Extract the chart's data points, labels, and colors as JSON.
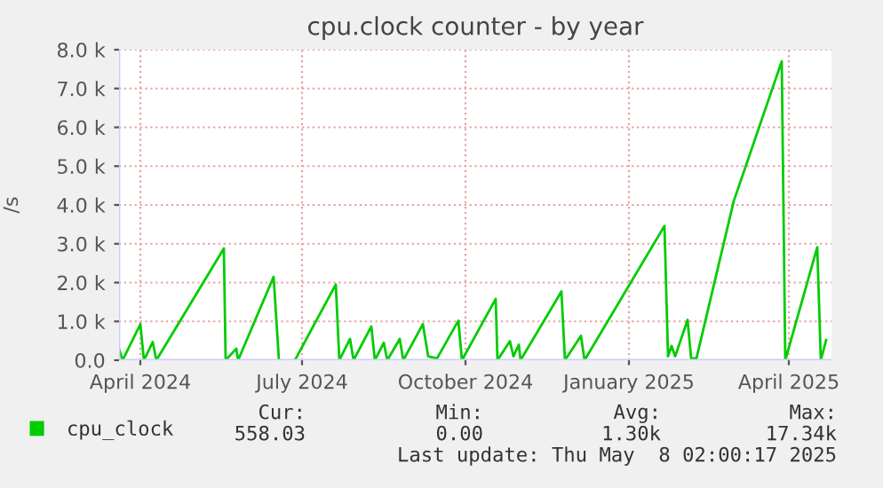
{
  "chart_data": {
    "type": "line",
    "title": "cpu.clock counter - by year",
    "ylabel": "/s",
    "x": [
      "2024-03-20",
      "2024-03-22",
      "2024-04-01",
      "2024-04-03",
      "2024-04-08",
      "2024-04-10",
      "2024-05-18",
      "2024-05-19",
      "2024-05-25",
      "2024-05-26",
      "2024-06-15",
      "2024-06-18",
      "2024-06-22",
      "2024-06-27",
      "2024-07-20",
      "2024-07-22",
      "2024-07-28",
      "2024-07-30",
      "2024-08-09",
      "2024-08-11",
      "2024-08-16",
      "2024-08-18",
      "2024-08-25",
      "2024-08-27",
      "2024-09-07",
      "2024-09-10",
      "2024-09-15",
      "2024-09-27",
      "2024-09-29",
      "2024-10-18",
      "2024-10-19",
      "2024-10-26",
      "2024-10-28",
      "2024-10-31",
      "2024-11-01",
      "2024-11-24",
      "2024-11-26",
      "2024-12-05",
      "2024-12-07",
      "2025-01-21",
      "2025-01-23",
      "2025-01-25",
      "2025-01-27",
      "2025-02-03",
      "2025-02-05",
      "2025-02-08",
      "2025-03-01",
      "2025-03-28",
      "2025-03-30",
      "2025-04-17",
      "2025-04-19",
      "2025-04-22"
    ],
    "series": [
      {
        "name": "cpu_clock",
        "color": "#00cc00",
        "values": [
          300,
          0,
          930,
          0,
          470,
          0,
          2880,
          0,
          300,
          0,
          2150,
          0,
          null,
          0,
          1950,
          0,
          550,
          0,
          870,
          0,
          450,
          0,
          550,
          0,
          930,
          100,
          50,
          1020,
          0,
          1580,
          0,
          490,
          100,
          400,
          0,
          1770,
          0,
          630,
          0,
          3460,
          100,
          370,
          100,
          1040,
          50,
          50,
          4100,
          7700,
          0,
          2910,
          0,
          520
        ]
      }
    ],
    "xlim": [
      "2024-03-20",
      "2025-04-25"
    ],
    "xticks": [
      {
        "value": "2024-04-01",
        "label": "April 2024"
      },
      {
        "value": "2024-07-01",
        "label": "July 2024"
      },
      {
        "value": "2024-10-01",
        "label": "October 2024"
      },
      {
        "value": "2025-01-01",
        "label": "January 2025"
      },
      {
        "value": "2025-04-01",
        "label": "April 2025"
      }
    ],
    "ylim": [
      0,
      8000
    ],
    "yticks": [
      {
        "value": 0,
        "label": "0.0"
      },
      {
        "value": 1000,
        "label": "1.0 k"
      },
      {
        "value": 2000,
        "label": "2.0 k"
      },
      {
        "value": 3000,
        "label": "3.0 k"
      },
      {
        "value": 4000,
        "label": "4.0 k"
      },
      {
        "value": 5000,
        "label": "5.0 k"
      },
      {
        "value": 6000,
        "label": "6.0 k"
      },
      {
        "value": 7000,
        "label": "7.0 k"
      },
      {
        "value": 8000,
        "label": "8.0 k"
      }
    ],
    "grid": true,
    "legend": "bottom",
    "marker": "none",
    "line_style": "solid",
    "annotations": [
      "Cur:",
      "Min:",
      "Avg:",
      "Max:",
      "558.03",
      "0.00",
      "1.30k",
      "17.34k",
      "Last update: Thu May  8 02:00:17 2025"
    ]
  }
}
